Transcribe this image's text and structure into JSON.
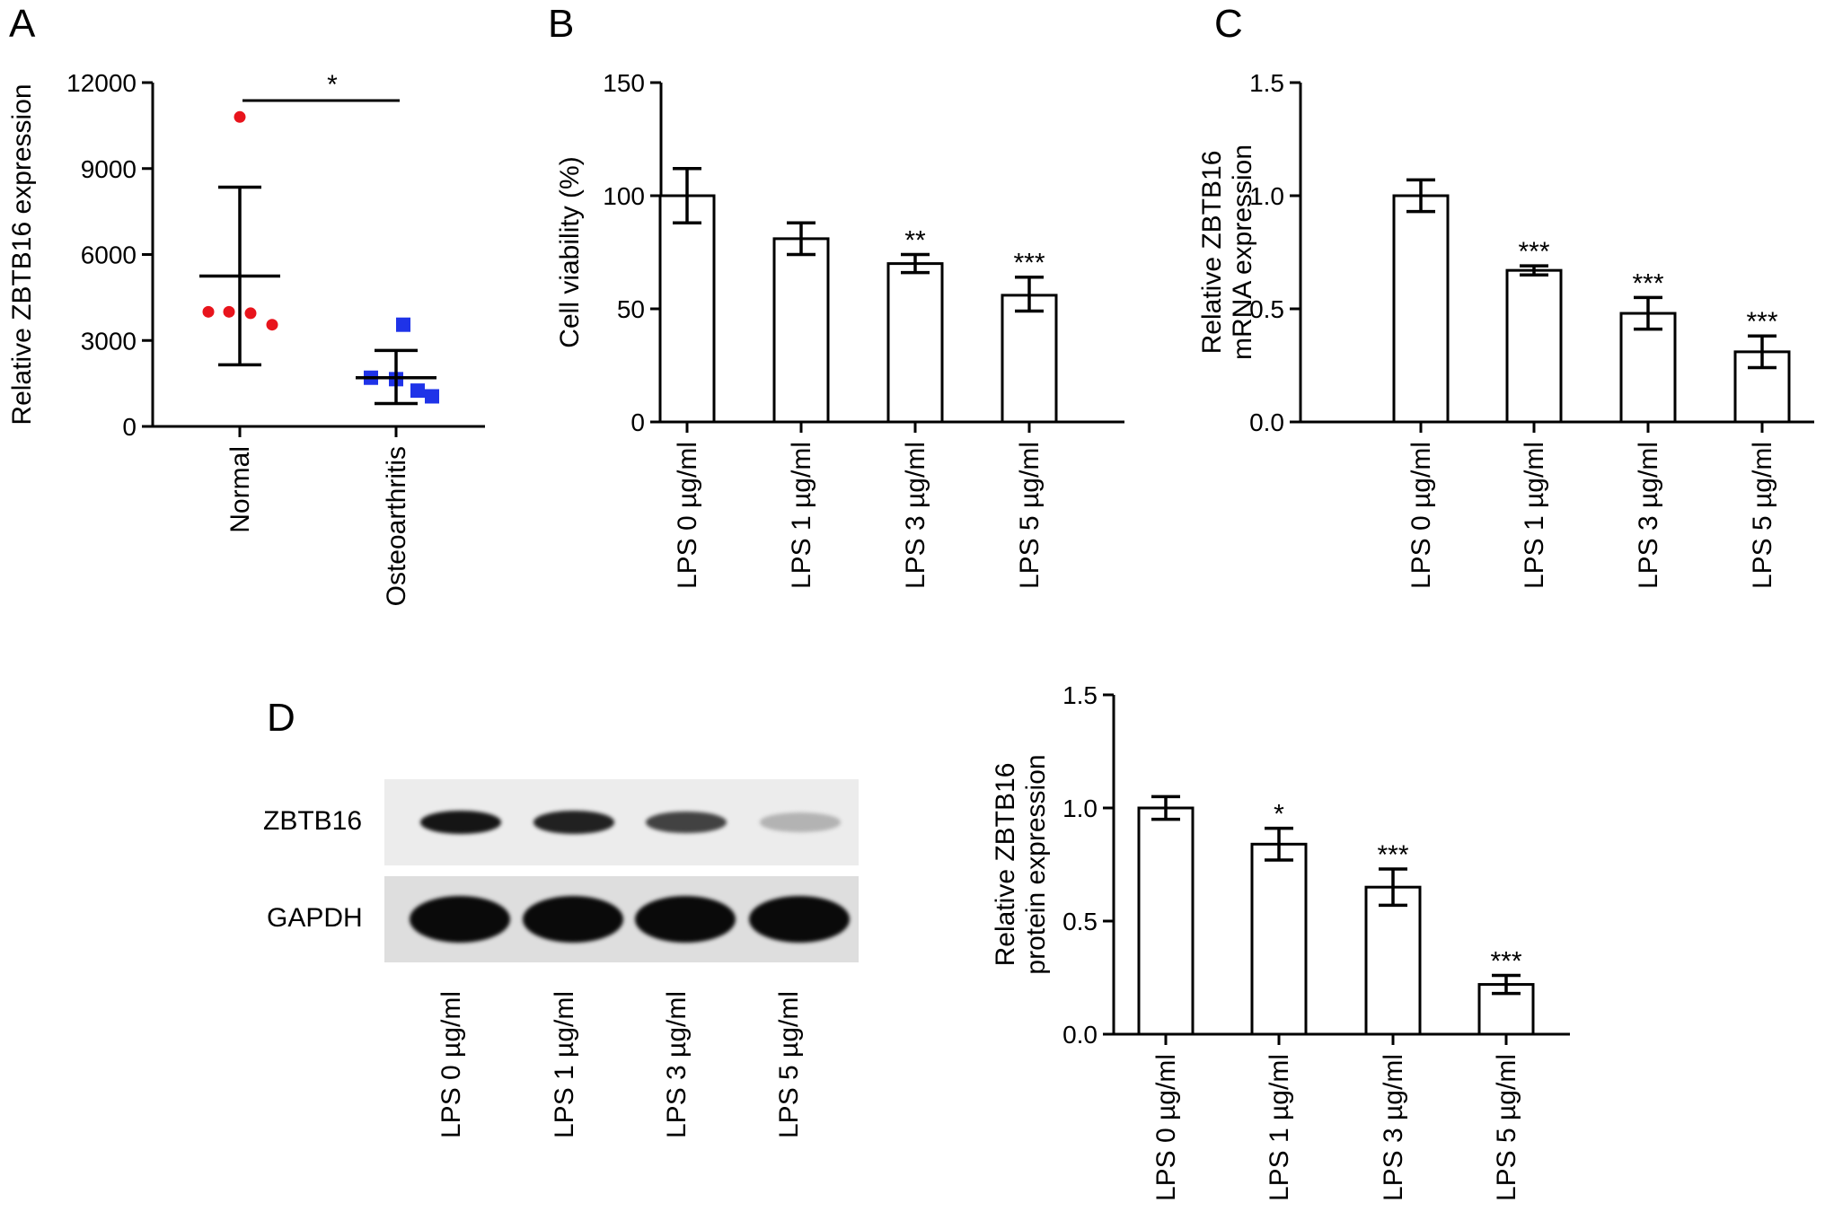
{
  "panels": {
    "A": {
      "letter": "A"
    },
    "B": {
      "letter": "B"
    },
    "C": {
      "letter": "C"
    },
    "D": {
      "letter": "D"
    }
  },
  "blot": {
    "rows": [
      {
        "label": "ZBTB16",
        "band_intensity": [
          0.95,
          0.9,
          0.75,
          0.25
        ]
      },
      {
        "label": "GAPDH",
        "band_intensity": [
          1.0,
          1.0,
          1.0,
          1.0
        ]
      }
    ],
    "lanes": [
      "LPS 0 µg/ml",
      "LPS 1 µg/ml",
      "LPS 3 µg/ml",
      "LPS 5 µg/ml"
    ]
  },
  "chart_data": [
    {
      "id": "A",
      "type": "scatter",
      "title": "",
      "xlabel": "",
      "ylabel": "Relative ZBTB16 expression",
      "ylim": [
        0,
        12000
      ],
      "yticks": [
        0,
        3000,
        6000,
        9000,
        12000
      ],
      "categories": [
        "Normal",
        "Osteoarthritis"
      ],
      "series": [
        {
          "category": "Normal",
          "color": "#e8141c",
          "marker": "circle",
          "values": [
            10800,
            4000,
            4000,
            3950,
            3550
          ],
          "mean": 5250,
          "sd_low": 2150,
          "sd_high": 8350
        },
        {
          "category": "Osteoarthritis",
          "color": "#1f33e8",
          "marker": "square",
          "values": [
            3550,
            1700,
            1650,
            1250,
            1050
          ],
          "mean": 1700,
          "sd_low": 800,
          "sd_high": 2650
        }
      ],
      "annotations": [
        {
          "text": "*",
          "between": [
            "Normal",
            "Osteoarthritis"
          ]
        }
      ]
    },
    {
      "id": "B",
      "type": "bar",
      "title": "",
      "xlabel": "",
      "ylabel": "Cell viability (%)",
      "ylim": [
        0,
        150
      ],
      "yticks": [
        0,
        50,
        100,
        150
      ],
      "categories": [
        "LPS 0 µg/ml",
        "LPS 1 µg/ml",
        "LPS 3 µg/ml",
        "LPS 5 µg/ml"
      ],
      "values": [
        100,
        81,
        70,
        56
      ],
      "err_low": [
        88,
        74,
        66,
        49
      ],
      "err_high": [
        112,
        88,
        74,
        64
      ],
      "significance": [
        "",
        "",
        "**",
        "***"
      ]
    },
    {
      "id": "C",
      "type": "bar",
      "title": "",
      "xlabel": "",
      "ylabel": "Relative ZBTB16\nmRNA expression",
      "ylim": [
        0,
        1.5
      ],
      "yticks": [
        "0.0",
        "0.5",
        "1.0",
        "1.5"
      ],
      "categories": [
        "LPS 0 µg/ml",
        "LPS 1 µg/ml",
        "LPS 3 µg/ml",
        "LPS 5 µg/ml"
      ],
      "values": [
        1.0,
        0.67,
        0.48,
        0.31
      ],
      "err_low": [
        0.93,
        0.65,
        0.41,
        0.24
      ],
      "err_high": [
        1.07,
        0.69,
        0.55,
        0.38
      ],
      "significance": [
        "",
        "***",
        "***",
        "***"
      ]
    },
    {
      "id": "D",
      "type": "bar",
      "title": "",
      "xlabel": "",
      "ylabel": "Relative ZBTB16\nprotein expression",
      "ylim": [
        0,
        1.5
      ],
      "yticks": [
        "0.0",
        "0.5",
        "1.0",
        "1.5"
      ],
      "categories": [
        "LPS 0 µg/ml",
        "LPS 1 µg/ml",
        "LPS 3 µg/ml",
        "LPS 5 µg/ml"
      ],
      "values": [
        1.0,
        0.84,
        0.65,
        0.22
      ],
      "err_low": [
        0.95,
        0.77,
        0.57,
        0.18
      ],
      "err_high": [
        1.05,
        0.91,
        0.73,
        0.26
      ],
      "significance": [
        "",
        "*",
        "***",
        "***"
      ]
    }
  ]
}
